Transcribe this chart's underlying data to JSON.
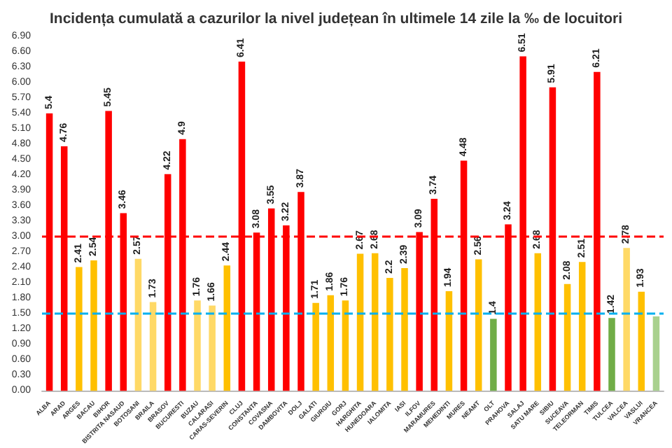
{
  "chart_data": {
    "type": "bar",
    "title": "Incidența cumulată a cazurilor la nivel județean în ultimele 14 zile la ‰ de locuitori",
    "categories": [
      "ALBA",
      "ARAD",
      "ARGES",
      "BACAU",
      "BIHOR",
      "BISTRITA NASAUD",
      "BOTOSANI",
      "BRAILA",
      "BRASOV",
      "BUCURESTI",
      "BUZAU",
      "CALARASI",
      "CARAS-SEVERIN",
      "CLUJ",
      "CONSTANTA",
      "COVASNA",
      "DAMBOVITA",
      "DOLJ",
      "GALATI",
      "GIURGIU",
      "GORJ",
      "HARGHITA",
      "HUNEDOARA",
      "IALOMITA",
      "IASI",
      "ILFOV",
      "MARAMURES",
      "MEHEDINTI",
      "MURES",
      "NEAMT",
      "OLT",
      "PRAHOVA",
      "SALAJ",
      "SATU MARE",
      "SIBIU",
      "SUCEAVA",
      "TELEORMAN",
      "TIMIS",
      "TULCEA",
      "VALCEA",
      "VASLUI",
      "VRANCEA"
    ],
    "values": [
      5.4,
      4.76,
      2.41,
      2.54,
      5.45,
      3.46,
      2.57,
      1.73,
      4.22,
      4.9,
      1.76,
      1.66,
      2.44,
      6.41,
      3.08,
      3.55,
      3.22,
      3.87,
      1.71,
      1.86,
      1.76,
      2.67,
      2.68,
      2.2,
      2.39,
      3.09,
      3.74,
      1.94,
      4.48,
      2.56,
      1.4,
      3.24,
      6.51,
      2.68,
      5.91,
      2.08,
      2.51,
      6.21,
      1.42,
      2.78,
      1.93,
      1.45
    ],
    "value_labels": [
      "5.4",
      "4.76",
      "2.41",
      "2.54",
      "5.45",
      "3.46",
      "2.57",
      "1.73",
      "4.22",
      "4.9",
      "1.76",
      "1.66",
      "2.44",
      "6.41",
      "3.08",
      "3.55",
      "3.22",
      "3.87",
      "1.71",
      "1.86",
      "1.76",
      "2.67",
      "2.68",
      "2.2",
      "2.39",
      "3.09",
      "3.74",
      "1.94",
      "4.48",
      "2.56",
      "1.4",
      "3.24",
      "6.51",
      "2.68",
      "5.91",
      "2.08",
      "2.51",
      "6.21",
      "1.42",
      "2.78",
      "1.93",
      null
    ],
    "colors": [
      "#ff0000",
      "#ff0000",
      "#ffc000",
      "#ffc000",
      "#ff0000",
      "#ff0000",
      "#ffd966",
      "#ffd966",
      "#ff0000",
      "#ff0000",
      "#ffd966",
      "#ffd966",
      "#ffc000",
      "#ff0000",
      "#ff0000",
      "#ff0000",
      "#ff0000",
      "#ff0000",
      "#ffc000",
      "#ffc000",
      "#ffc000",
      "#ffc000",
      "#ffc000",
      "#ffc000",
      "#ffc000",
      "#ff0000",
      "#ff0000",
      "#ffc000",
      "#ff0000",
      "#ffc000",
      "#70ad47",
      "#ff0000",
      "#ff0000",
      "#ffc000",
      "#ff0000",
      "#ffc000",
      "#ffc000",
      "#ff0000",
      "#70ad47",
      "#ffd966",
      "#ffc000",
      "#a9d18e"
    ],
    "ylim": [
      0,
      6.9
    ],
    "yticks": [
      {
        "value": 0,
        "label": "0.00"
      },
      {
        "value": 0.3,
        "label": "0.30"
      },
      {
        "value": 0.6,
        "label": "0.60"
      },
      {
        "value": 0.9,
        "label": "0.90"
      },
      {
        "value": 1.2,
        "label": "1.20"
      },
      {
        "value": 1.5,
        "label": "1.50"
      },
      {
        "value": 1.8,
        "label": "1.80"
      },
      {
        "value": 2.1,
        "label": "2.10"
      },
      {
        "value": 2.4,
        "label": "2.40"
      },
      {
        "value": 2.7,
        "label": "2.70"
      },
      {
        "value": 3,
        "label": "3.00"
      },
      {
        "value": 3.3,
        "label": "3.30"
      },
      {
        "value": 3.6,
        "label": "3.60"
      },
      {
        "value": 3.9,
        "label": "3.90"
      },
      {
        "value": 4.2,
        "label": "4.20"
      },
      {
        "value": 4.5,
        "label": "4.50"
      },
      {
        "value": 4.8,
        "label": "4.80"
      },
      {
        "value": 5.1,
        "label": "5.10"
      },
      {
        "value": 5.4,
        "label": "5.40"
      },
      {
        "value": 5.7,
        "label": "5.70"
      },
      {
        "value": 6,
        "label": "6.00"
      },
      {
        "value": 6.3,
        "label": "6.30"
      },
      {
        "value": 6.6,
        "label": "6.60"
      },
      {
        "value": 6.9,
        "label": "6.90"
      }
    ],
    "ref_lines": [
      {
        "axis": "y",
        "value": 3,
        "color": "#ff0000",
        "line_style": "dashed"
      },
      {
        "axis": "y",
        "value": 1.5,
        "color": "#00b0f0",
        "line_style": "dashed"
      }
    ],
    "grid": false
  }
}
